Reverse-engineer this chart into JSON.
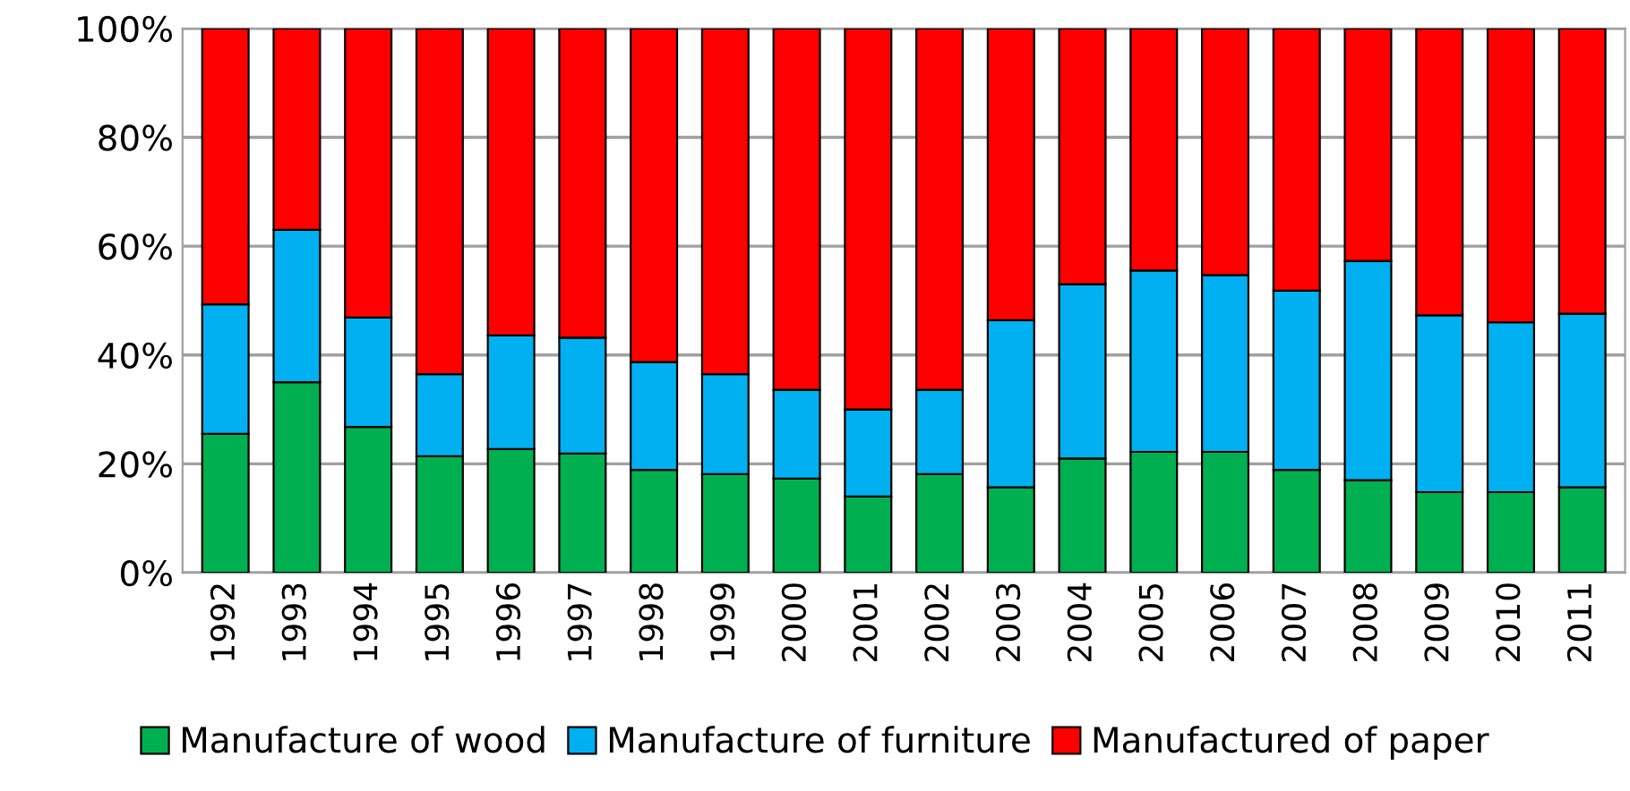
{
  "chart_data": {
    "type": "bar",
    "stacked": true,
    "categories": [
      "1992",
      "1993",
      "1994",
      "1995",
      "1996",
      "1997",
      "1998",
      "1999",
      "2000",
      "2001",
      "2002",
      "2003",
      "2004",
      "2005",
      "2006",
      "2007",
      "2008",
      "2009",
      "2010",
      "2011"
    ],
    "series": [
      {
        "name": "Manufacture of wood",
        "color": "#00b050",
        "values": [
          25.5,
          35.0,
          26.8,
          21.4,
          22.7,
          21.9,
          18.9,
          18.1,
          17.3,
          14.0,
          18.1,
          15.7,
          21.0,
          22.2,
          22.2,
          18.9,
          17.0,
          14.8,
          14.8,
          15.7
        ]
      },
      {
        "name": "Manufacture of furniture",
        "color": "#00b0f0",
        "values": [
          23.8,
          28.0,
          20.1,
          15.1,
          20.9,
          21.3,
          19.8,
          18.4,
          16.3,
          16.0,
          15.5,
          30.7,
          32.0,
          33.3,
          32.5,
          32.9,
          40.3,
          32.5,
          31.2,
          31.9
        ]
      },
      {
        "name": "Manufactured of paper",
        "color": "#ff0000",
        "values": [
          50.7,
          37.0,
          53.1,
          63.5,
          56.4,
          56.8,
          61.3,
          63.5,
          66.4,
          70.0,
          66.4,
          53.6,
          47.0,
          44.5,
          45.3,
          48.2,
          42.7,
          52.7,
          54.0,
          52.4
        ]
      }
    ],
    "ylim": [
      0,
      100
    ],
    "yticks": [
      {
        "value": 0,
        "label": "0%"
      },
      {
        "value": 20,
        "label": "20%"
      },
      {
        "value": 40,
        "label": "40%"
      },
      {
        "value": 60,
        "label": "60%"
      },
      {
        "value": 80,
        "label": "80%"
      },
      {
        "value": 100,
        "label": "100%"
      }
    ],
    "grid": "y",
    "legend": "bottom"
  }
}
